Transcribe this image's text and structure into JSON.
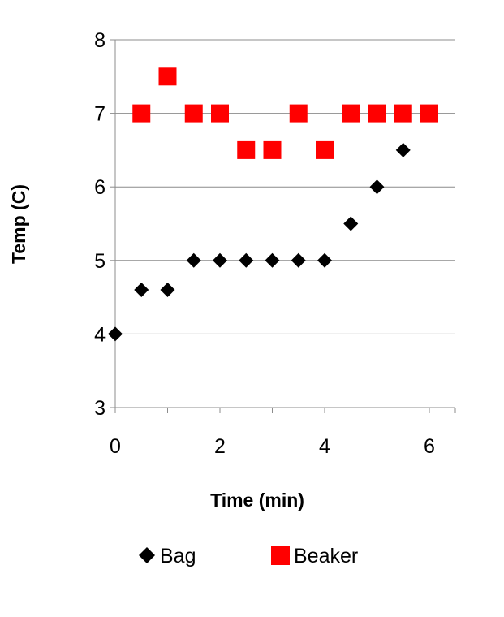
{
  "chart_data": {
    "type": "scatter",
    "title": "",
    "xlabel": "Time (min)",
    "ylabel": "Temp (C)",
    "xlim": [
      0,
      6.5
    ],
    "ylim": [
      3,
      8
    ],
    "xticks": [
      "0",
      "2",
      "4",
      "6"
    ],
    "yticks": [
      "3",
      "4",
      "5",
      "6",
      "7",
      "8"
    ],
    "grid": "horizontal",
    "legend_position": "bottom",
    "series": [
      {
        "name": "Bag",
        "marker": "diamond",
        "color": "#000000",
        "x": [
          0,
          0.5,
          1,
          1.5,
          2,
          2.5,
          3,
          3.5,
          4,
          4.5,
          5,
          5.5
        ],
        "y": [
          4,
          4.6,
          4.6,
          5,
          5,
          5,
          5,
          5,
          5,
          5.5,
          6,
          6.5
        ]
      },
      {
        "name": "Beaker",
        "marker": "square",
        "color": "#ff0000",
        "x": [
          0.5,
          1,
          1.5,
          2,
          2.5,
          3,
          3.5,
          4,
          4.5,
          5,
          5.5,
          6
        ],
        "y": [
          7,
          7.5,
          7,
          7,
          6.5,
          6.5,
          7,
          6.5,
          7,
          7,
          7,
          7
        ]
      }
    ]
  }
}
